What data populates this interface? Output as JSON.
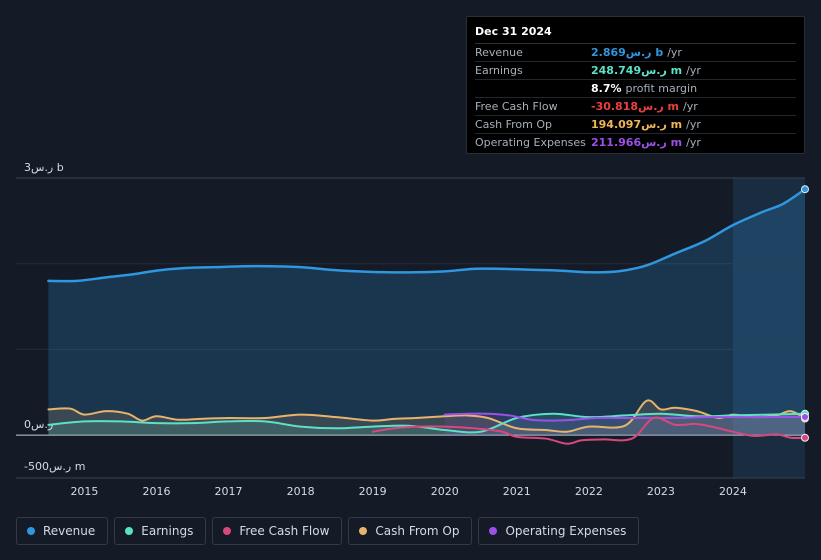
{
  "tooltip": {
    "date": "Dec 31 2024",
    "rows": [
      {
        "label": "Revenue",
        "value": "2.869ر.س b",
        "unit": "/yr",
        "color": "#2f96e0"
      },
      {
        "label": "Earnings",
        "value": "248.749ر.س m",
        "unit": "/yr",
        "color": "#5ce0c6"
      },
      {
        "label": "",
        "value": "8.7%",
        "unit": "profit margin",
        "color": "#ffffff"
      },
      {
        "label": "Free Cash Flow",
        "value": "-30.818ر.س m",
        "unit": "/yr",
        "color": "#e8413f"
      },
      {
        "label": "Cash From Op",
        "value": "194.097ر.س m",
        "unit": "/yr",
        "color": "#f0b45a"
      },
      {
        "label": "Operating Expenses",
        "value": "211.966ر.س m",
        "unit": "/yr",
        "color": "#9b51e6"
      }
    ]
  },
  "legend": [
    {
      "label": "Revenue",
      "color": "#2f96e0"
    },
    {
      "label": "Earnings",
      "color": "#5ce0c6"
    },
    {
      "label": "Free Cash Flow",
      "color": "#d9477f"
    },
    {
      "label": "Cash From Op",
      "color": "#e8b36b"
    },
    {
      "label": "Operating Expenses",
      "color": "#9b51e6"
    }
  ],
  "chart_data": {
    "type": "area",
    "y_tick_labels": {
      "top": "3ر.س b",
      "zero": "0ر.س",
      "bottom": "-500ر.س m"
    },
    "ylim": [
      -500,
      3000
    ],
    "x_ticks": [
      "2015",
      "2016",
      "2017",
      "2018",
      "2019",
      "2020",
      "2021",
      "2022",
      "2023",
      "2024"
    ],
    "xlim": [
      2014.5,
      2025.0
    ],
    "highlight_from": 2024.0,
    "series": [
      {
        "name": "Revenue",
        "color": "#2f96e0",
        "fill": true,
        "x": [
          2014.5,
          2014.9,
          2015.3,
          2015.7,
          2016.0,
          2016.4,
          2016.8,
          2017.2,
          2017.6,
          2018.0,
          2018.4,
          2018.8,
          2019.2,
          2019.6,
          2020.0,
          2020.4,
          2020.8,
          2021.2,
          2021.6,
          2022.0,
          2022.4,
          2022.8,
          2023.2,
          2023.6,
          2024.0,
          2024.4,
          2024.7,
          2025.0
        ],
        "values": [
          1800,
          1800,
          1840,
          1880,
          1920,
          1950,
          1960,
          1970,
          1970,
          1960,
          1930,
          1910,
          1900,
          1900,
          1910,
          1940,
          1940,
          1930,
          1920,
          1900,
          1910,
          1980,
          2120,
          2260,
          2450,
          2600,
          2700,
          2869
        ]
      },
      {
        "name": "Earnings",
        "color": "#5ce0c6",
        "fill": true,
        "x": [
          2014.5,
          2015.0,
          2015.5,
          2016.0,
          2016.5,
          2017.0,
          2017.5,
          2018.0,
          2018.5,
          2019.0,
          2019.5,
          2020.0,
          2020.5,
          2021.0,
          2021.5,
          2022.0,
          2022.5,
          2023.0,
          2023.5,
          2024.0,
          2024.5,
          2025.0
        ],
        "values": [
          120,
          160,
          160,
          140,
          140,
          160,
          160,
          100,
          80,
          100,
          110,
          60,
          40,
          200,
          250,
          210,
          230,
          250,
          220,
          230,
          240,
          249
        ]
      },
      {
        "name": "Free Cash Flow",
        "color": "#d9477f",
        "fill": false,
        "x": [
          2019.0,
          2019.3,
          2019.6,
          2020.0,
          2020.4,
          2020.8,
          2021.0,
          2021.4,
          2021.7,
          2021.9,
          2022.2,
          2022.6,
          2022.9,
          2023.2,
          2023.5,
          2023.8,
          2024.0,
          2024.3,
          2024.6,
          2024.8,
          2025.0
        ],
        "values": [
          40,
          80,
          100,
          100,
          80,
          40,
          -20,
          -40,
          -100,
          -60,
          -50,
          -40,
          200,
          120,
          130,
          80,
          40,
          -10,
          10,
          -30,
          -31
        ]
      },
      {
        "name": "Cash From Op",
        "color": "#e8b36b",
        "fill": true,
        "x": [
          2014.5,
          2014.8,
          2015.0,
          2015.3,
          2015.6,
          2015.8,
          2016.0,
          2016.3,
          2016.6,
          2017.0,
          2017.5,
          2018.0,
          2018.5,
          2019.0,
          2019.3,
          2019.6,
          2020.0,
          2020.3,
          2020.6,
          2021.0,
          2021.4,
          2021.7,
          2022.0,
          2022.5,
          2022.8,
          2023.0,
          2023.2,
          2023.5,
          2023.8,
          2024.0,
          2024.3,
          2024.6,
          2024.8,
          2025.0
        ],
        "values": [
          300,
          310,
          240,
          280,
          250,
          170,
          220,
          180,
          190,
          200,
          200,
          240,
          210,
          170,
          190,
          200,
          220,
          230,
          200,
          80,
          60,
          40,
          100,
          110,
          400,
          300,
          320,
          280,
          200,
          240,
          210,
          230,
          280,
          194
        ]
      },
      {
        "name": "Operating Expenses",
        "color": "#9b51e6",
        "fill": true,
        "x": [
          2020.0,
          2020.3,
          2020.6,
          2020.9,
          2021.2,
          2021.5,
          2021.8,
          2022.1,
          2022.4,
          2022.8,
          2023.2,
          2023.6,
          2024.0,
          2024.4,
          2024.7,
          2025.0
        ],
        "values": [
          240,
          250,
          250,
          230,
          180,
          170,
          180,
          200,
          200,
          200,
          200,
          210,
          210,
          210,
          212,
          212
        ]
      }
    ]
  }
}
